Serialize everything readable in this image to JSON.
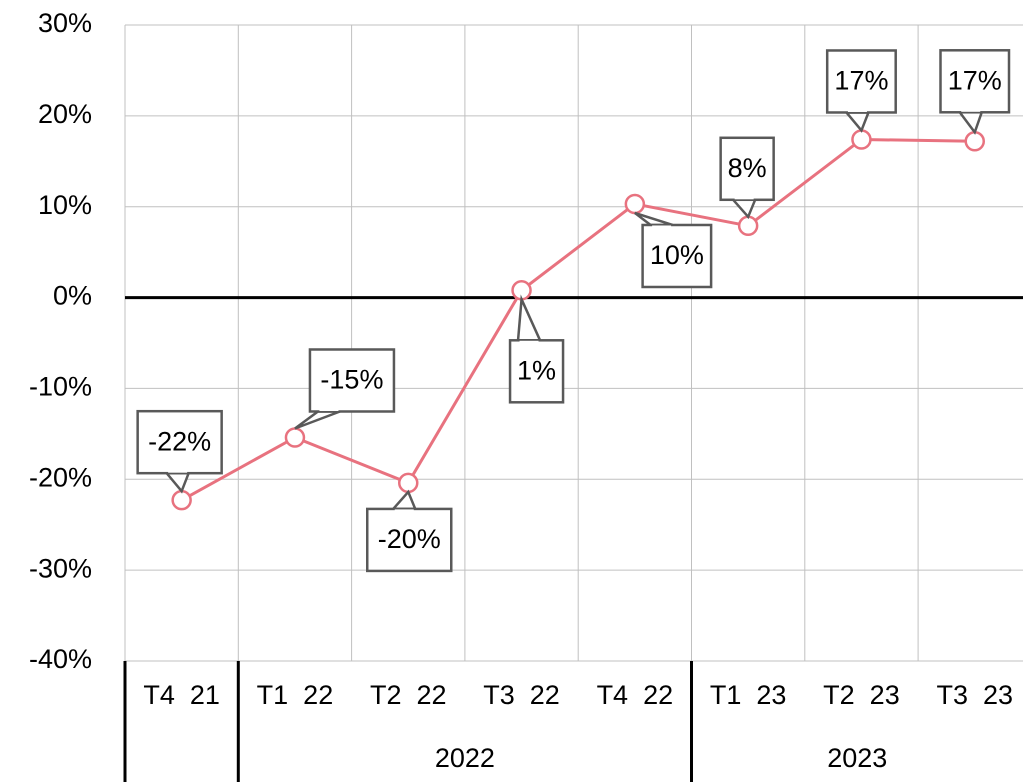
{
  "chart_data": {
    "type": "line",
    "categories": [
      "T4  21",
      "T1  22",
      "T2  22",
      "T3  22",
      "T4  22",
      "T1  23",
      "T2  23",
      "T3  23"
    ],
    "groups": [
      {
        "name": "2022",
        "from": 1,
        "to": 4
      },
      {
        "name": "2023",
        "from": 5,
        "to": 7
      }
    ],
    "series": [
      {
        "color": "#e8727f",
        "values": [
          -22.3,
          -15.4,
          -20.4,
          0.8,
          10.3,
          7.9,
          17.4,
          17.2
        ],
        "value_labels": [
          "-22%",
          "-15%",
          "-20%",
          "1%",
          "10%",
          "8%",
          "17%",
          "17%"
        ]
      }
    ],
    "ylim": [
      -40,
      30
    ],
    "yticks": [
      {
        "value": -40,
        "label": "-40%"
      },
      {
        "value": -30,
        "label": "-30%"
      },
      {
        "value": -20,
        "label": "-20%"
      },
      {
        "value": -10,
        "label": "-10%"
      },
      {
        "value": 0,
        "label": "0%"
      },
      {
        "value": 10,
        "label": "10%"
      },
      {
        "value": 20,
        "label": "20%"
      },
      {
        "value": 30,
        "label": "30%"
      }
    ],
    "grid": true
  }
}
